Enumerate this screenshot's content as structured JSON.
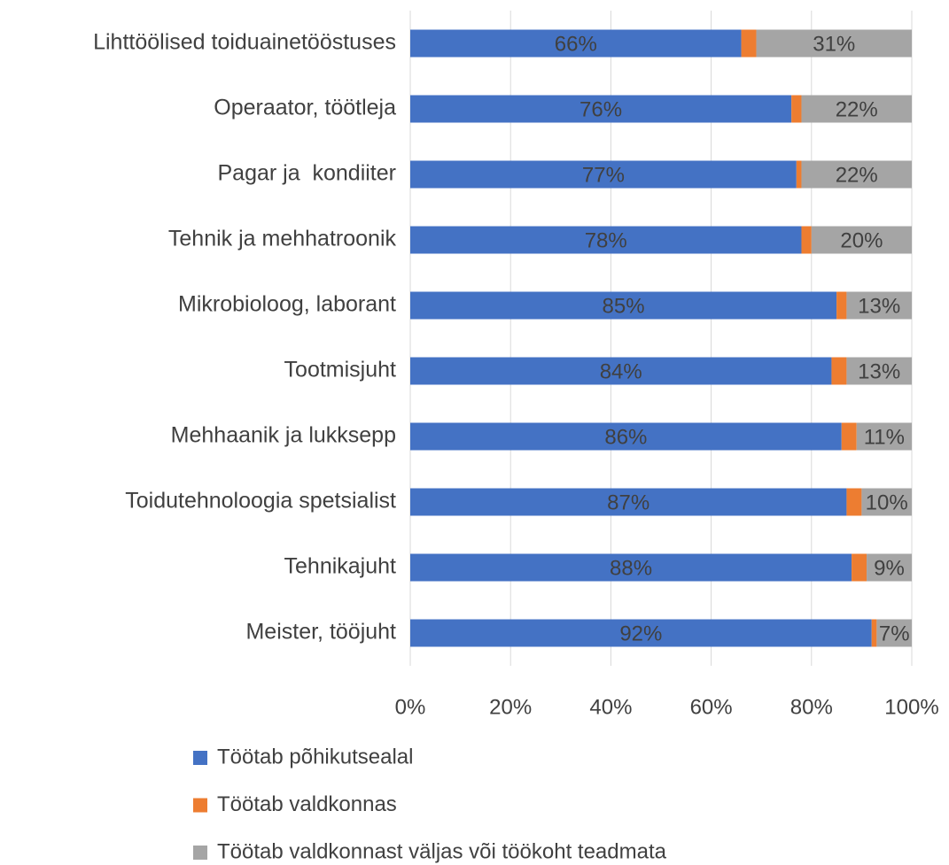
{
  "chart_data": {
    "type": "stacked_barh",
    "categories": [
      "Lihttöölised toiduainetööstuses",
      "Operaator, töötleja",
      "Pagar ja  kondiiter",
      "Tehnik ja mehhatroonik",
      "Mikrobioloog, laborant",
      "Tootmisjuht",
      "Mehhaanik ja lukksepp",
      "Toidutehnoloogia spetsialist",
      "Tehnikajuht",
      "Meister, tööjuht"
    ],
    "series": [
      {
        "name": "Töötab põhikutsealal",
        "color": "#4472c4",
        "values": [
          66,
          76,
          77,
          78,
          85,
          84,
          86,
          87,
          88,
          92
        ],
        "value_labels": [
          "66%",
          "76%",
          "77%",
          "78%",
          "85%",
          "84%",
          "86%",
          "87%",
          "88%",
          "92%"
        ]
      },
      {
        "name": "Töötab valdkonnas",
        "color": "#ed7d31",
        "values": [
          3,
          2,
          1,
          2,
          2,
          3,
          3,
          3,
          3,
          1
        ]
      },
      {
        "name": "Töötab valdkonnast väljas või töökoht teadmata",
        "color": "#a5a5a5",
        "values": [
          31,
          22,
          22,
          20,
          13,
          13,
          11,
          10,
          9,
          7
        ],
        "value_labels": [
          "31%",
          "22%",
          "22%",
          "20%",
          "13%",
          "13%",
          "11%",
          "10%",
          "9%",
          "7%"
        ]
      }
    ],
    "xlim": [
      0,
      100
    ],
    "xticks": [
      {
        "value": 0,
        "label": "0%"
      },
      {
        "value": 20,
        "label": "20%"
      },
      {
        "value": 40,
        "label": "40%"
      },
      {
        "value": 60,
        "label": "60%"
      },
      {
        "value": 80,
        "label": "80%"
      },
      {
        "value": 100,
        "label": "100%"
      }
    ],
    "grid": true,
    "legend": "bottom"
  }
}
